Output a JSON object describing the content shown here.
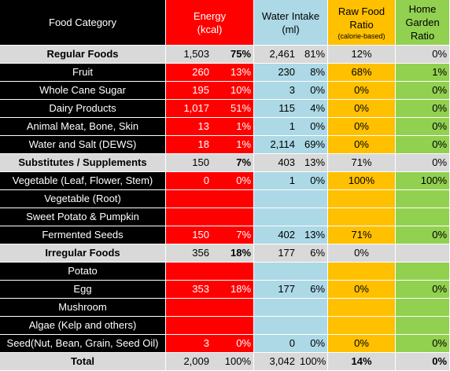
{
  "headers": {
    "category": "Food Category",
    "energy_line1": "Energy",
    "energy_line2": "(kcal)",
    "water_line1": "Water Intake",
    "water_line2": "(ml)",
    "raw_line1": "Raw Food",
    "raw_line2": "Ratio",
    "raw_line3": "(calorie-based)",
    "garden_line1": "Home",
    "garden_line2": "Garden",
    "garden_line3": "Ratio"
  },
  "rows": [
    {
      "type": "group",
      "name": "Regular Foods",
      "energy": "1,503",
      "energy_pct": "75%",
      "water": "2,461",
      "water_pct": "81%",
      "raw": "12%",
      "garden": "0%",
      "energy_pct_bold": true,
      "raw_bold": false,
      "garden_bold": false
    },
    {
      "type": "item",
      "name": "Fruit",
      "energy": "260",
      "energy_pct": "13%",
      "water": "230",
      "water_pct": "8%",
      "raw": "68%",
      "garden": "1%"
    },
    {
      "type": "item",
      "name": "Whole Cane Sugar",
      "energy": "195",
      "energy_pct": "10%",
      "water": "3",
      "water_pct": "0%",
      "raw": "0%",
      "garden": "0%"
    },
    {
      "type": "item",
      "name": "Dairy Products",
      "energy": "1,017",
      "energy_pct": "51%",
      "water": "115",
      "water_pct": "4%",
      "raw": "0%",
      "garden": "0%"
    },
    {
      "type": "item",
      "name": "Animal Meat, Bone, Skin",
      "energy": "13",
      "energy_pct": "1%",
      "water": "1",
      "water_pct": "0%",
      "raw": "0%",
      "garden": "0%"
    },
    {
      "type": "item",
      "name": "Water and Salt (DEWS)",
      "energy": "18",
      "energy_pct": "1%",
      "water": "2,114",
      "water_pct": "69%",
      "raw": "0%",
      "garden": "0%"
    },
    {
      "type": "group",
      "name": "Substitutes / Supplements",
      "energy": "150",
      "energy_pct": "7%",
      "water": "403",
      "water_pct": "13%",
      "raw": "71%",
      "garden": "0%",
      "energy_pct_bold": true,
      "raw_bold": false,
      "garden_bold": false
    },
    {
      "type": "item",
      "name": "Vegetable (Leaf, Flower, Stem)",
      "energy": "0",
      "energy_pct": "0%",
      "water": "1",
      "water_pct": "0%",
      "raw": "100%",
      "garden": "100%"
    },
    {
      "type": "item",
      "name": "Vegetable (Root)",
      "energy": "",
      "energy_pct": "",
      "water": "",
      "water_pct": "",
      "raw": "",
      "garden": ""
    },
    {
      "type": "item",
      "name": "Sweet Potato & Pumpkin",
      "energy": "",
      "energy_pct": "",
      "water": "",
      "water_pct": "",
      "raw": "",
      "garden": ""
    },
    {
      "type": "item",
      "name": "Fermented Seeds",
      "energy": "150",
      "energy_pct": "7%",
      "water": "402",
      "water_pct": "13%",
      "raw": "71%",
      "garden": "0%"
    },
    {
      "type": "group",
      "name": "Irregular Foods",
      "energy": "356",
      "energy_pct": "18%",
      "water": "177",
      "water_pct": "6%",
      "raw": "0%",
      "garden": "",
      "energy_pct_bold": true,
      "raw_bold": false,
      "garden_bold": false
    },
    {
      "type": "item",
      "name": "Potato",
      "energy": "",
      "energy_pct": "",
      "water": "",
      "water_pct": "",
      "raw": "",
      "garden": ""
    },
    {
      "type": "item",
      "name": "Egg",
      "energy": "353",
      "energy_pct": "18%",
      "water": "177",
      "water_pct": "6%",
      "raw": "0%",
      "garden": "0%"
    },
    {
      "type": "item",
      "name": "Mushroom",
      "energy": "",
      "energy_pct": "",
      "water": "",
      "water_pct": "",
      "raw": "",
      "garden": ""
    },
    {
      "type": "item",
      "name": "Algae (Kelp and others)",
      "energy": "",
      "energy_pct": "",
      "water": "",
      "water_pct": "",
      "raw": "",
      "garden": ""
    },
    {
      "type": "item",
      "name": "Seed(Nut, Bean, Grain, Seed Oil)",
      "energy": "3",
      "energy_pct": "0%",
      "water": "0",
      "water_pct": "0%",
      "raw": "0%",
      "garden": "0%"
    },
    {
      "type": "total",
      "name": "Total",
      "energy": "2,009",
      "energy_pct": "100%",
      "water": "3,042",
      "water_pct": "100%",
      "raw": "14%",
      "garden": "0%",
      "energy_pct_bold": false,
      "raw_bold": true,
      "garden_bold": true
    }
  ],
  "colors": {
    "category_bg": "#000000",
    "energy_bg": "#ff0000",
    "water_bg": "#add8e6",
    "raw_bg": "#ffc000",
    "garden_bg": "#92d050",
    "group_bg": "#d9d9d9"
  }
}
